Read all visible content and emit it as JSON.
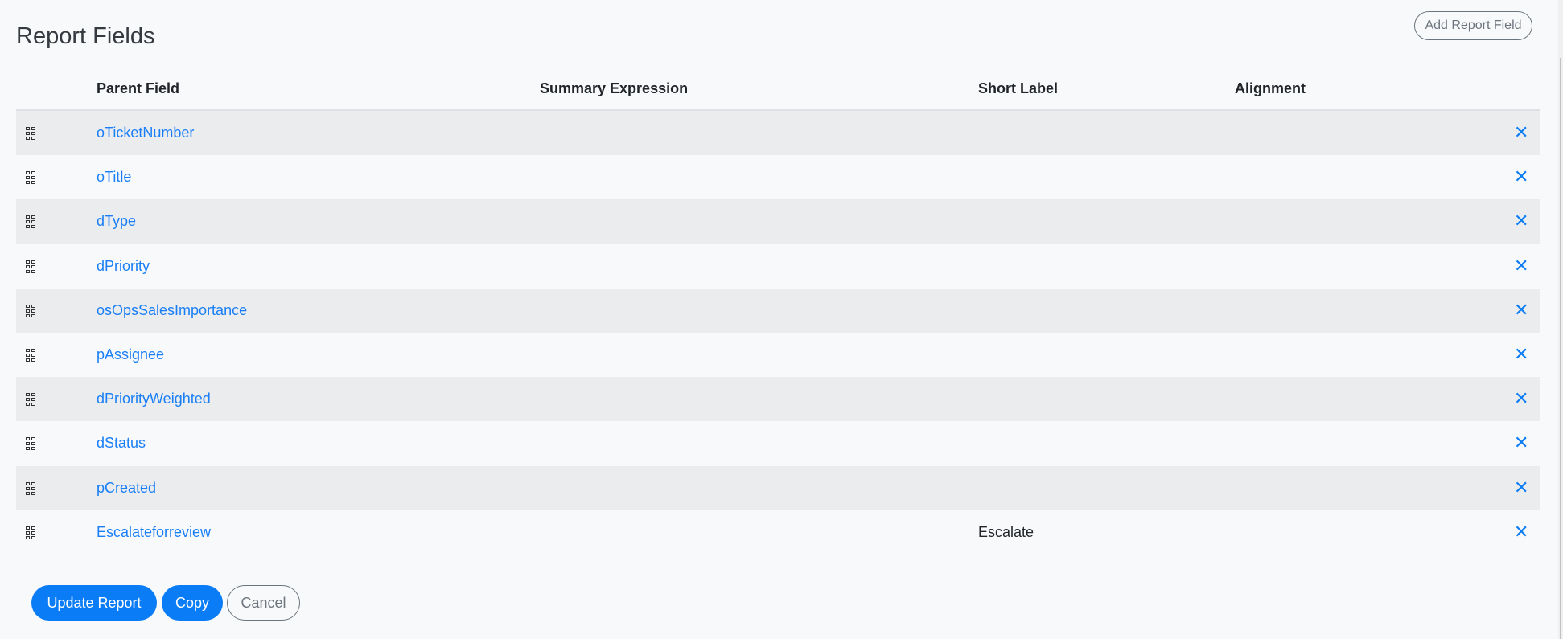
{
  "page": {
    "title": "Report Fields",
    "add_button": "Add Report Field"
  },
  "table": {
    "headers": [
      "Parent Field",
      "Summary Expression",
      "Short Label",
      "Alignment"
    ],
    "rows": [
      {
        "parent_field": "oTicketNumber",
        "summary_expression": "",
        "short_label": "",
        "alignment": ""
      },
      {
        "parent_field": "oTitle",
        "summary_expression": "",
        "short_label": "",
        "alignment": ""
      },
      {
        "parent_field": "dType",
        "summary_expression": "",
        "short_label": "",
        "alignment": ""
      },
      {
        "parent_field": "dPriority",
        "summary_expression": "",
        "short_label": "",
        "alignment": ""
      },
      {
        "parent_field": "osOpsSalesImportance",
        "summary_expression": "",
        "short_label": "",
        "alignment": ""
      },
      {
        "parent_field": "pAssignee",
        "summary_expression": "",
        "short_label": "",
        "alignment": ""
      },
      {
        "parent_field": "dPriorityWeighted",
        "summary_expression": "",
        "short_label": "",
        "alignment": ""
      },
      {
        "parent_field": "dStatus",
        "summary_expression": "",
        "short_label": "",
        "alignment": ""
      },
      {
        "parent_field": "pCreated",
        "summary_expression": "",
        "short_label": "",
        "alignment": ""
      },
      {
        "parent_field": "Escalateforreview",
        "summary_expression": "",
        "short_label": "Escalate",
        "alignment": ""
      }
    ],
    "delete_glyph": "✕",
    "icons": {
      "row_handle": "drag-grip-icon",
      "delete": "close-icon"
    }
  },
  "footer": {
    "update": "Update Report",
    "copy": "Copy",
    "cancel": "Cancel"
  },
  "colors": {
    "accent": "#0a7cf5",
    "stripe": "#ebecee",
    "background": "#f8f9fb"
  }
}
